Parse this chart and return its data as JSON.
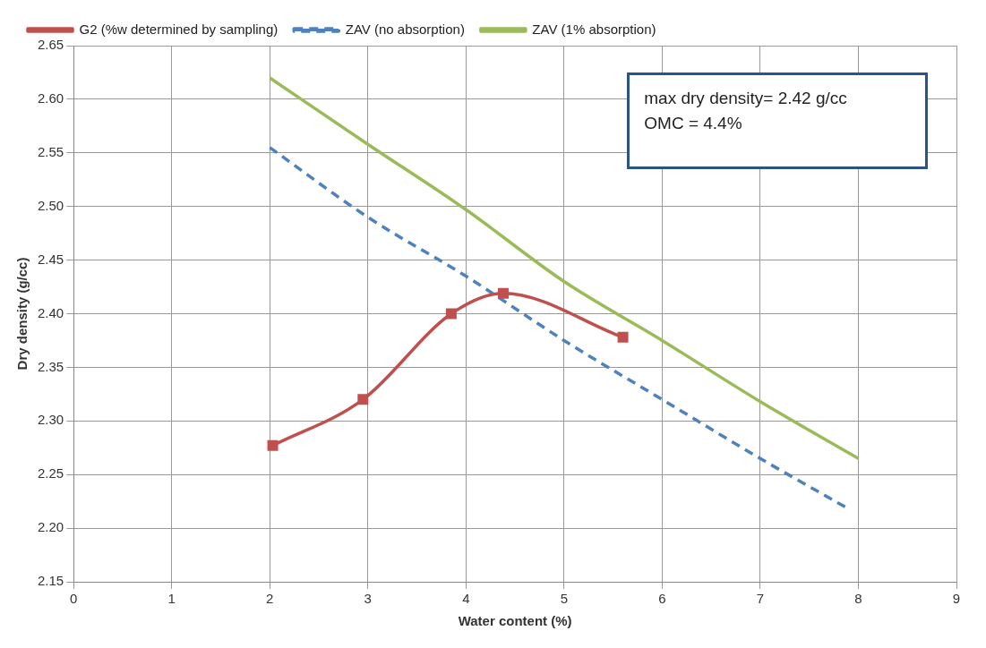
{
  "chart_data": {
    "type": "line",
    "xlabel": "Water content (%)",
    "ylabel": "Dry density (g/cc)",
    "xlim": [
      0,
      9
    ],
    "xticks": [
      0,
      1,
      2,
      3,
      4,
      5,
      6,
      7,
      8,
      9
    ],
    "ylim": [
      2.15,
      2.65
    ],
    "yticks": [
      2.15,
      {
        "value": 2.2,
        "label": "2.20"
      },
      2.25,
      {
        "value": 2.3,
        "label": "2.30"
      },
      2.35,
      {
        "value": 2.4,
        "label": "2.40"
      },
      2.45,
      {
        "value": 2.5,
        "label": "2.50"
      },
      2.55,
      {
        "value": 2.6,
        "label": "2.60"
      },
      2.65
    ],
    "grid": true,
    "legend": "top",
    "series": [
      {
        "name": "G2 (%w determined by sampling)",
        "color": "#c0504d",
        "marker": "square",
        "line_style": "solid",
        "x": [
          2.03,
          2.95,
          3.85,
          4.38,
          5.6
        ],
        "values": [
          2.277,
          2.32,
          2.4,
          2.419,
          2.378
        ]
      },
      {
        "name": "ZAV (no absorption)",
        "color": "#4f81bd",
        "marker": "none",
        "line_style": "dashed",
        "x": [
          2,
          3,
          4,
          5,
          6,
          7,
          7.9
        ],
        "values": [
          2.555,
          2.49,
          2.435,
          2.375,
          2.32,
          2.265,
          2.218
        ]
      },
      {
        "name": "ZAV (1% absorption)",
        "color": "#9bbb59",
        "marker": "none",
        "line_style": "solid",
        "x": [
          2,
          3,
          4,
          5,
          6,
          7,
          8
        ],
        "values": [
          2.62,
          2.558,
          2.497,
          2.43,
          2.375,
          2.318,
          2.265
        ]
      }
    ],
    "annotations": [
      "max dry density= 2.42 g/cc",
      "OMC = 4.4%"
    ]
  }
}
